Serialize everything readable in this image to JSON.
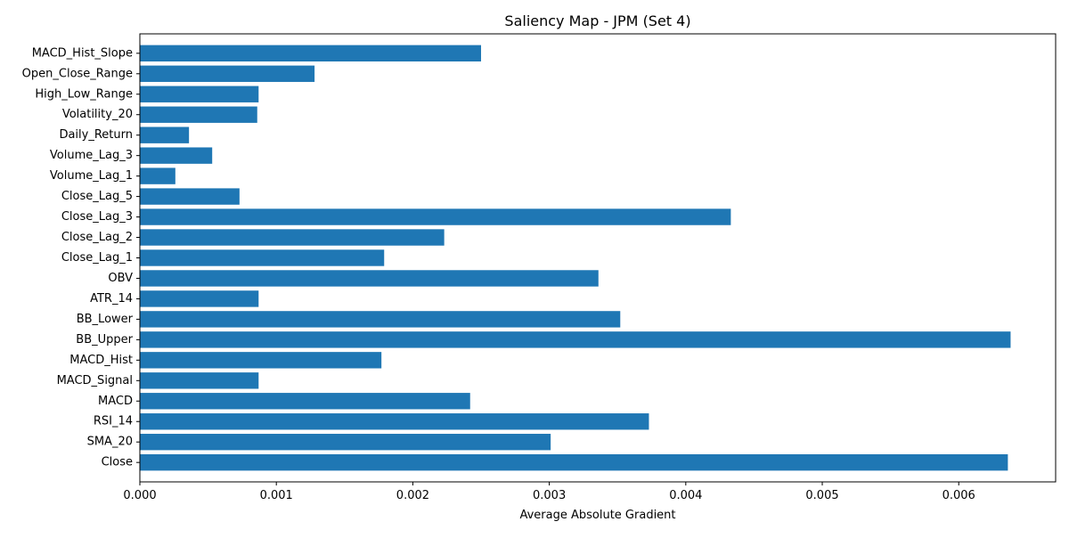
{
  "chart_data": {
    "type": "bar",
    "orientation": "horizontal",
    "title": "Saliency Map - JPM (Set 4)",
    "xlabel": "Average Absolute Gradient",
    "ylabel": "",
    "xlim": [
      0,
      0.00671
    ],
    "xticks": [
      0.0,
      0.001,
      0.002,
      0.003,
      0.004,
      0.005,
      0.006
    ],
    "xtick_labels": [
      "0.000",
      "0.001",
      "0.002",
      "0.003",
      "0.004",
      "0.005",
      "0.006"
    ],
    "grid": false,
    "bar_color": "#1f77b4",
    "categories": [
      "Close",
      "SMA_20",
      "RSI_14",
      "MACD",
      "MACD_Signal",
      "MACD_Hist",
      "BB_Upper",
      "BB_Lower",
      "ATR_14",
      "OBV",
      "Close_Lag_1",
      "Close_Lag_2",
      "Close_Lag_3",
      "Close_Lag_5",
      "Volume_Lag_1",
      "Volume_Lag_3",
      "Daily_Return",
      "Volatility_20",
      "High_Low_Range",
      "Open_Close_Range",
      "MACD_Hist_Slope"
    ],
    "values": [
      0.00636,
      0.00301,
      0.00373,
      0.00242,
      0.00087,
      0.00177,
      0.00638,
      0.00352,
      0.00087,
      0.00336,
      0.00179,
      0.00223,
      0.00433,
      0.00073,
      0.00026,
      0.00053,
      0.00036,
      0.00086,
      0.00087,
      0.00128,
      0.0025
    ]
  }
}
